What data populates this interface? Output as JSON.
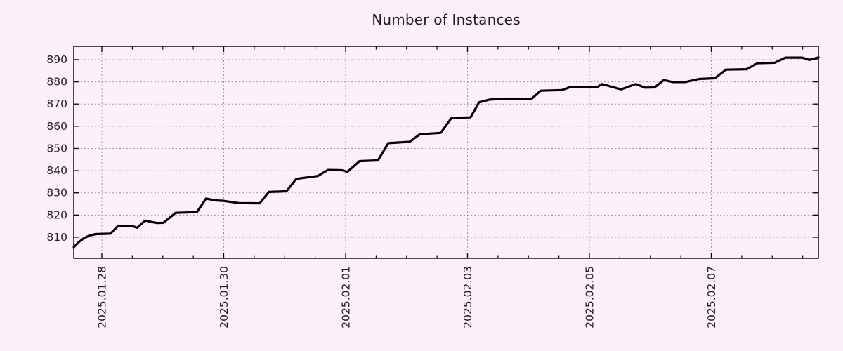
{
  "chart_data": {
    "type": "line",
    "title": "Number of Instances",
    "legend": "none",
    "grid": "dotted",
    "colors": {
      "background": "#fdf0f8",
      "line": "#000000",
      "grid": "#9b9b9b",
      "axis": "#000000",
      "text": "#1c1c1c"
    },
    "x_axis": {
      "range_days": [
        -0.461,
        11.758
      ],
      "minor_tick_interval_days": 0.5,
      "major_ticks": [
        {
          "day": 0,
          "label": "2025.01.28"
        },
        {
          "day": 2,
          "label": "2025.01.30"
        },
        {
          "day": 4,
          "label": "2025.02.01"
        },
        {
          "day": 6,
          "label": "2025.02.03"
        },
        {
          "day": 8,
          "label": "2025.02.05"
        },
        {
          "day": 10,
          "label": "2025.02.07"
        }
      ]
    },
    "y_axis": {
      "range": [
        800.5,
        896
      ],
      "ticks": [
        810,
        820,
        830,
        840,
        850,
        860,
        870,
        880,
        890
      ]
    },
    "series": [
      {
        "name": "instances",
        "color": "#000000",
        "points": [
          [
            -0.46,
            805.5
          ],
          [
            -0.38,
            807.8
          ],
          [
            -0.29,
            809.6
          ],
          [
            -0.2,
            810.8
          ],
          [
            -0.1,
            811.4
          ],
          [
            0.14,
            811.6
          ],
          [
            0.27,
            815.2
          ],
          [
            0.5,
            815.0
          ],
          [
            0.58,
            814.3
          ],
          [
            0.71,
            817.5
          ],
          [
            0.9,
            816.4
          ],
          [
            1.01,
            816.5
          ],
          [
            1.21,
            821.0
          ],
          [
            1.56,
            821.3
          ],
          [
            1.71,
            827.4
          ],
          [
            1.87,
            826.6
          ],
          [
            1.99,
            826.4
          ],
          [
            2.25,
            825.4
          ],
          [
            2.59,
            825.3
          ],
          [
            2.74,
            830.4
          ],
          [
            3.03,
            830.7
          ],
          [
            3.19,
            836.3
          ],
          [
            3.54,
            837.6
          ],
          [
            3.71,
            840.3
          ],
          [
            3.94,
            840.2
          ],
          [
            4.03,
            839.5
          ],
          [
            4.23,
            844.3
          ],
          [
            4.53,
            844.6
          ],
          [
            4.7,
            852.4
          ],
          [
            5.05,
            853.0
          ],
          [
            5.22,
            856.4
          ],
          [
            5.56,
            857.0
          ],
          [
            5.74,
            863.8
          ],
          [
            6.05,
            864.0
          ],
          [
            6.19,
            870.8
          ],
          [
            6.36,
            872.0
          ],
          [
            6.55,
            872.3
          ],
          [
            7.05,
            872.3
          ],
          [
            7.2,
            876.0
          ],
          [
            7.55,
            876.3
          ],
          [
            7.69,
            877.7
          ],
          [
            8.13,
            877.7
          ],
          [
            8.21,
            879.0
          ],
          [
            8.52,
            876.6
          ],
          [
            8.76,
            879.0
          ],
          [
            8.91,
            877.4
          ],
          [
            9.07,
            877.5
          ],
          [
            9.22,
            880.8
          ],
          [
            9.37,
            879.9
          ],
          [
            9.57,
            879.9
          ],
          [
            9.8,
            881.3
          ],
          [
            10.06,
            881.6
          ],
          [
            10.24,
            885.5
          ],
          [
            10.58,
            885.7
          ],
          [
            10.76,
            888.4
          ],
          [
            11.04,
            888.6
          ],
          [
            11.22,
            890.9
          ],
          [
            11.49,
            890.9
          ],
          [
            11.61,
            889.9
          ],
          [
            11.76,
            891.0
          ]
        ]
      }
    ]
  }
}
